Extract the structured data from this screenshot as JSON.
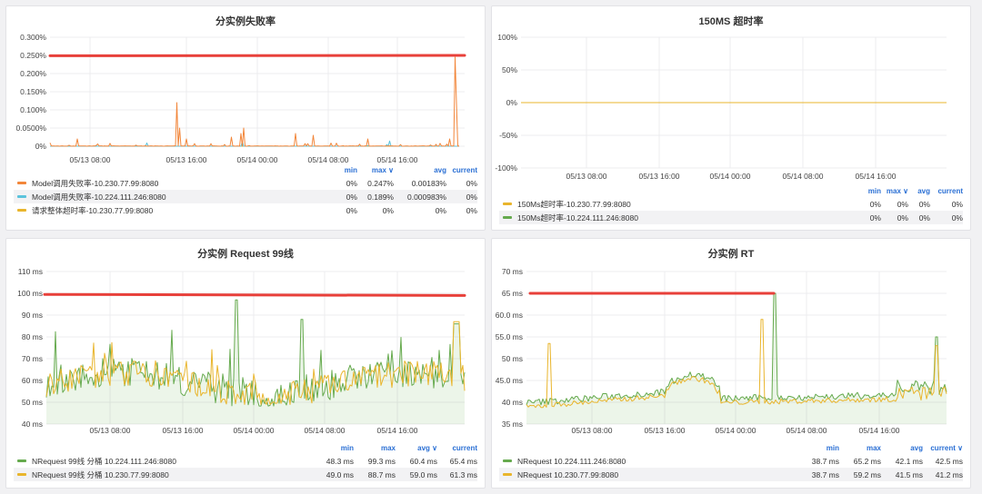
{
  "colors": {
    "orange": "#f2863a",
    "blue": "#5bc3dc",
    "yellow": "#e9b52c",
    "green": "#66aa4e",
    "red": "#e8403a"
  },
  "panels": {
    "p1": {
      "title": "分实例失败率",
      "yticks": [
        "0.300%",
        "0.250%",
        "0.200%",
        "0.150%",
        "0.100%",
        "0.0500%",
        "0%"
      ],
      "xticks": [
        "05/13 08:00",
        "05/13 16:00",
        "05/14 00:00",
        "05/14 08:00",
        "05/14 16:00"
      ],
      "legend_cols": [
        "min",
        "max",
        "avg",
        "current"
      ],
      "sort_indicator": "max",
      "series": [
        {
          "name": "Model调用失败率-10.230.77.99:8080",
          "color": "orange",
          "min": "0%",
          "max": "0.247%",
          "avg": "0.00183%",
          "current": "0%"
        },
        {
          "name": "Model调用失败率-10.224.111.246:8080",
          "color": "blue",
          "min": "0%",
          "max": "0.189%",
          "avg": "0.000983%",
          "current": "0%"
        },
        {
          "name": "请求整体超时率-10.230.77.99:8080",
          "color": "yellow",
          "min": "0%",
          "max": "0%",
          "avg": "0%",
          "current": "0%"
        }
      ]
    },
    "p2": {
      "title": "150MS 超时率",
      "yticks": [
        "100%",
        "50%",
        "0%",
        "-50%",
        "-100%"
      ],
      "xticks": [
        "05/13 08:00",
        "05/13 16:00",
        "05/14 00:00",
        "05/14 08:00",
        "05/14 16:00"
      ],
      "legend_cols": [
        "min",
        "max",
        "avg",
        "current"
      ],
      "sort_indicator": "max",
      "series": [
        {
          "name": "150Ms超时率-10.230.77.99:8080",
          "color": "yellow",
          "min": "0%",
          "max": "0%",
          "avg": "0%",
          "current": "0%"
        },
        {
          "name": "150Ms超时率-10.224.111.246:8080",
          "color": "green",
          "min": "0%",
          "max": "0%",
          "avg": "0%",
          "current": "0%"
        }
      ]
    },
    "p3": {
      "title": "分实例 Request 99线",
      "yticks": [
        "110 ms",
        "100 ms",
        "90 ms",
        "80 ms",
        "70 ms",
        "60 ms",
        "50 ms",
        "40 ms"
      ],
      "xticks": [
        "05/13 08:00",
        "05/13 16:00",
        "05/14 00:00",
        "05/14 08:00",
        "05/14 16:00"
      ],
      "legend_cols": [
        "min",
        "max",
        "avg",
        "current"
      ],
      "sort_indicator": "avg",
      "series": [
        {
          "name": "NRequest 99线 分桶 10.224.111.246:8080",
          "color": "green",
          "min": "48.3 ms",
          "max": "99.3 ms",
          "avg": "60.4 ms",
          "current": "65.4 ms"
        },
        {
          "name": "NRequest 99线 分桶 10.230.77.99:8080",
          "color": "yellow",
          "min": "49.0 ms",
          "max": "88.7 ms",
          "avg": "59.0 ms",
          "current": "61.3 ms"
        }
      ]
    },
    "p4": {
      "title": "分实例 RT",
      "yticks": [
        "70 ms",
        "65 ms",
        "60.0 ms",
        "55.0 ms",
        "50 ms",
        "45.0 ms",
        "40 ms",
        "35 ms"
      ],
      "xticks": [
        "05/13 08:00",
        "05/13 16:00",
        "05/14 00:00",
        "05/14 08:00",
        "05/14 16:00"
      ],
      "legend_cols": [
        "min",
        "max",
        "avg",
        "current"
      ],
      "sort_indicator": "current",
      "series": [
        {
          "name": "NRequest 10.224.111.246:8080",
          "color": "green",
          "min": "38.7 ms",
          "max": "65.2 ms",
          "avg": "42.1 ms",
          "current": "42.5 ms"
        },
        {
          "name": "NRequest 10.230.77.99:8080",
          "color": "yellow",
          "min": "38.7 ms",
          "max": "59.2 ms",
          "avg": "41.5 ms",
          "current": "41.2 ms"
        }
      ]
    }
  }
}
